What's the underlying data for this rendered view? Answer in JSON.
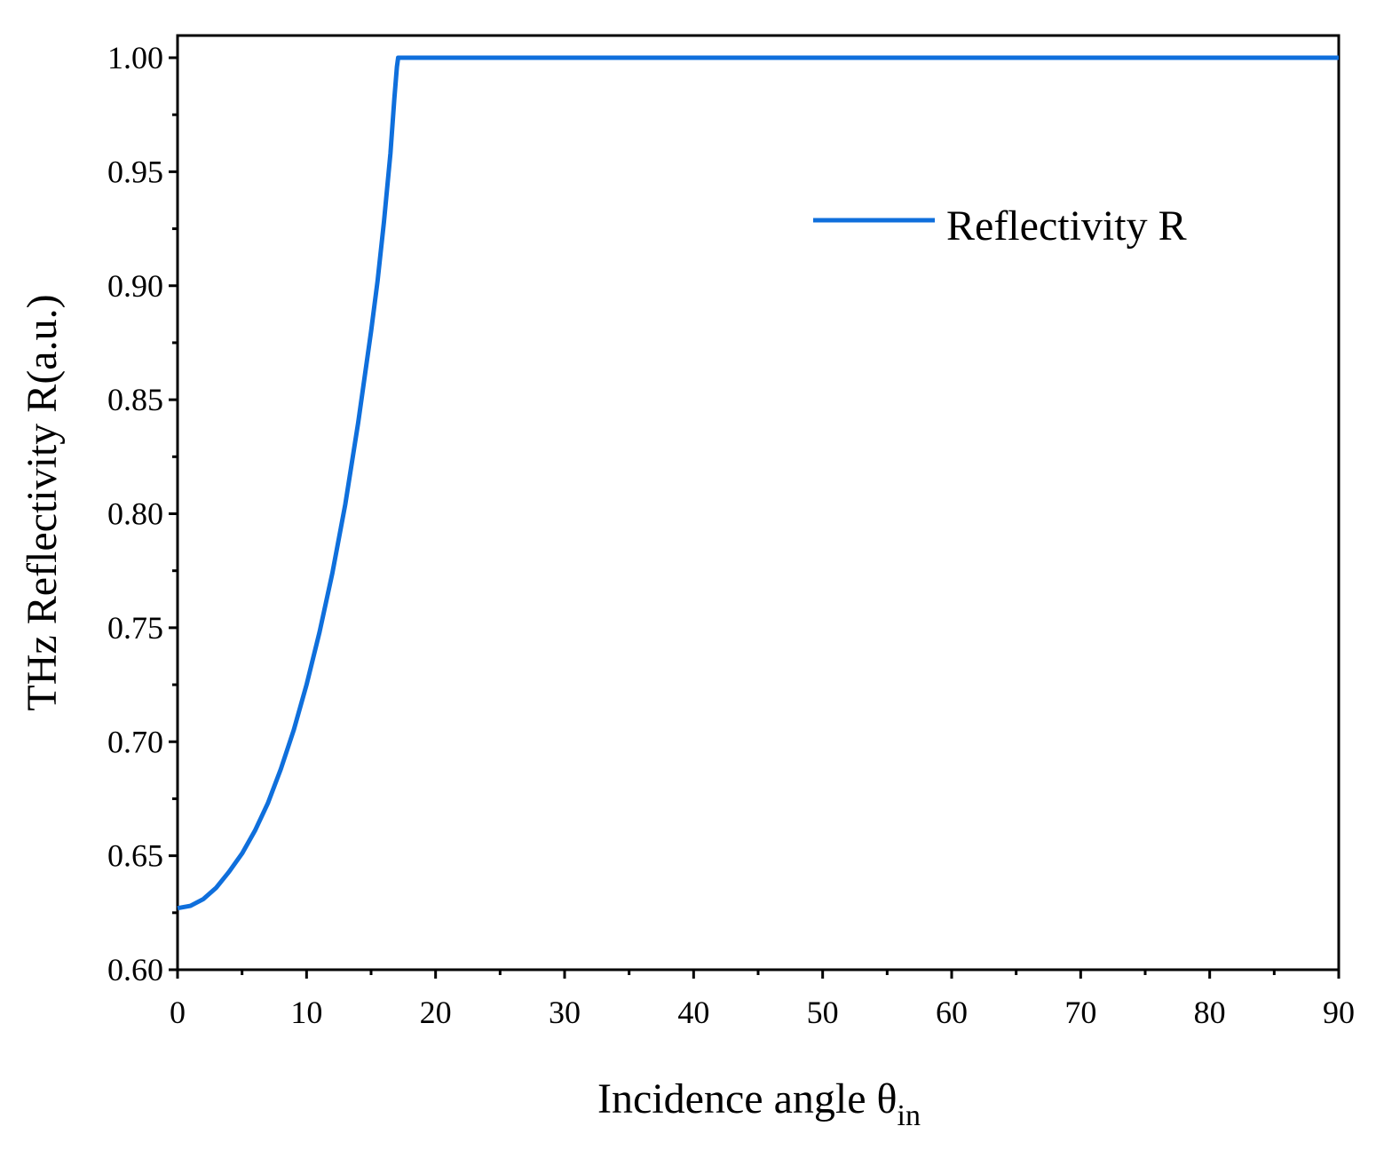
{
  "chart_data": {
    "type": "line",
    "title": "",
    "xlabel": "Incidence angle θ",
    "xlabel_sub": "in",
    "ylabel": "THz Reflectivity R(a.u.)",
    "xlim": [
      0,
      90
    ],
    "ylim": [
      0.6,
      1.0
    ],
    "x_ticks": [
      0,
      10,
      20,
      30,
      40,
      50,
      60,
      70,
      80,
      90
    ],
    "x_tick_labels": [
      "0",
      "10",
      "20",
      "30",
      "40",
      "50",
      "60",
      "70",
      "80",
      "90"
    ],
    "y_ticks": [
      0.6,
      0.65,
      0.7,
      0.75,
      0.8,
      0.85,
      0.9,
      0.95,
      1.0
    ],
    "y_tick_labels": [
      "0.60",
      "0.65",
      "0.70",
      "0.75",
      "0.80",
      "0.85",
      "0.90",
      "0.95",
      "1.00"
    ],
    "grid": false,
    "legend_position": "top-right",
    "series": [
      {
        "name": "Reflectivity R",
        "color": "#0f6fdc",
        "x": [
          0,
          1,
          2,
          3,
          4,
          5,
          6,
          7,
          8,
          9,
          10,
          11,
          12,
          13,
          14,
          15,
          15.5,
          16,
          16.5,
          16.8,
          17.0,
          17.1,
          17.2,
          20,
          30,
          40,
          50,
          60,
          70,
          80,
          90
        ],
        "y": [
          0.627,
          0.628,
          0.631,
          0.636,
          0.643,
          0.651,
          0.661,
          0.673,
          0.688,
          0.705,
          0.725,
          0.748,
          0.774,
          0.804,
          0.84,
          0.88,
          0.902,
          0.928,
          0.958,
          0.982,
          0.996,
          1.0,
          1.0,
          1.0,
          1.0,
          1.0,
          1.0,
          1.0,
          1.0,
          1.0,
          1.0
        ]
      }
    ]
  }
}
